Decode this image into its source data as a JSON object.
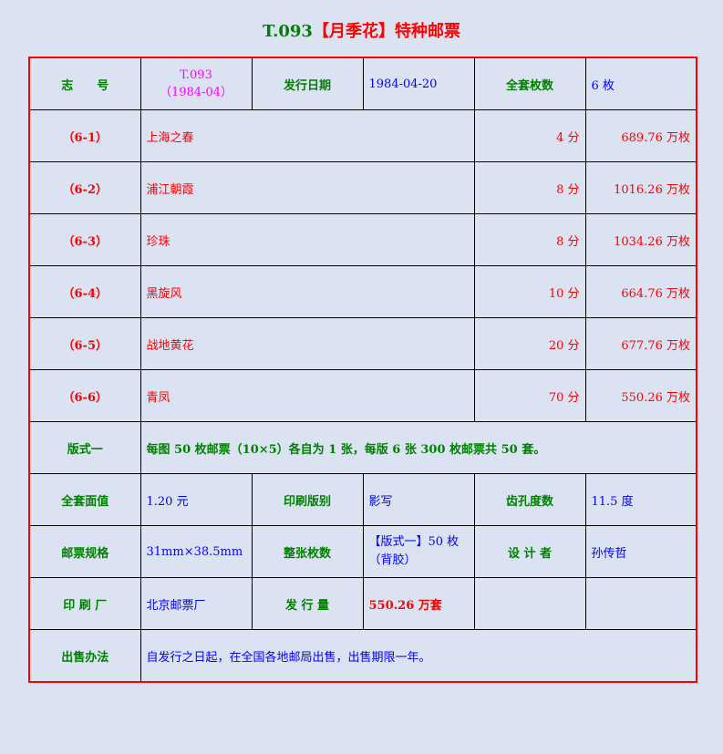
{
  "title": {
    "code": "T.093",
    "name": "【月季花】特种邮票"
  },
  "header": {
    "id_label": "志　　号",
    "id_value_1": "T.093",
    "id_value_2": "（1984-04）",
    "date_label": "发行日期",
    "date_value": "1984-04-20",
    "count_label": "全套枚数",
    "count_value": "6 枚"
  },
  "stamps": [
    {
      "no": "（6-1）",
      "name": "上海之春",
      "value": "4 分",
      "quantity": "689.76 万枚"
    },
    {
      "no": "（6-2）",
      "name": "浦江朝霞",
      "value": "8 分",
      "quantity": "1016.26 万枚"
    },
    {
      "no": "（6-3）",
      "name": "珍珠",
      "value": "8 分",
      "quantity": "1034.26 万枚"
    },
    {
      "no": "（6-4）",
      "name": "黑旋风",
      "value": "10 分",
      "quantity": "664.76 万枚"
    },
    {
      "no": "（6-5）",
      "name": "战地黄花",
      "value": "20 分",
      "quantity": "677.76 万枚"
    },
    {
      "no": "（6-6）",
      "name": "青凤",
      "value": "70 分",
      "quantity": "550.26 万枚"
    }
  ],
  "format": {
    "label": "版式一",
    "value": "每图 50 枚邮票（10×5）各自为 1 张，每版 6 张 300 枚邮票共 50 套。"
  },
  "details": {
    "face_label": "全套面值",
    "face_value": "1.20 元",
    "print_label": "印刷版别",
    "print_value": "影写",
    "perf_label": "齿孔度数",
    "perf_value": "11.5 度",
    "size_label": "邮票规格",
    "size_value": "31mm×38.5mm",
    "sheet_label": "整张枚数",
    "sheet_value_1": "【版式一】50 枚",
    "sheet_value_2": "（背胶）",
    "designer_label": "设 计 者",
    "designer_value": "孙传哲",
    "printer_label": "印 刷 厂",
    "printer_value": "北京邮票厂",
    "issue_label": "发 行 量",
    "issue_value": "550.26 万套",
    "sale_label": "出售办法",
    "sale_value": "自发行之日起，在全国各地邮局出售，出售期限一年。"
  }
}
